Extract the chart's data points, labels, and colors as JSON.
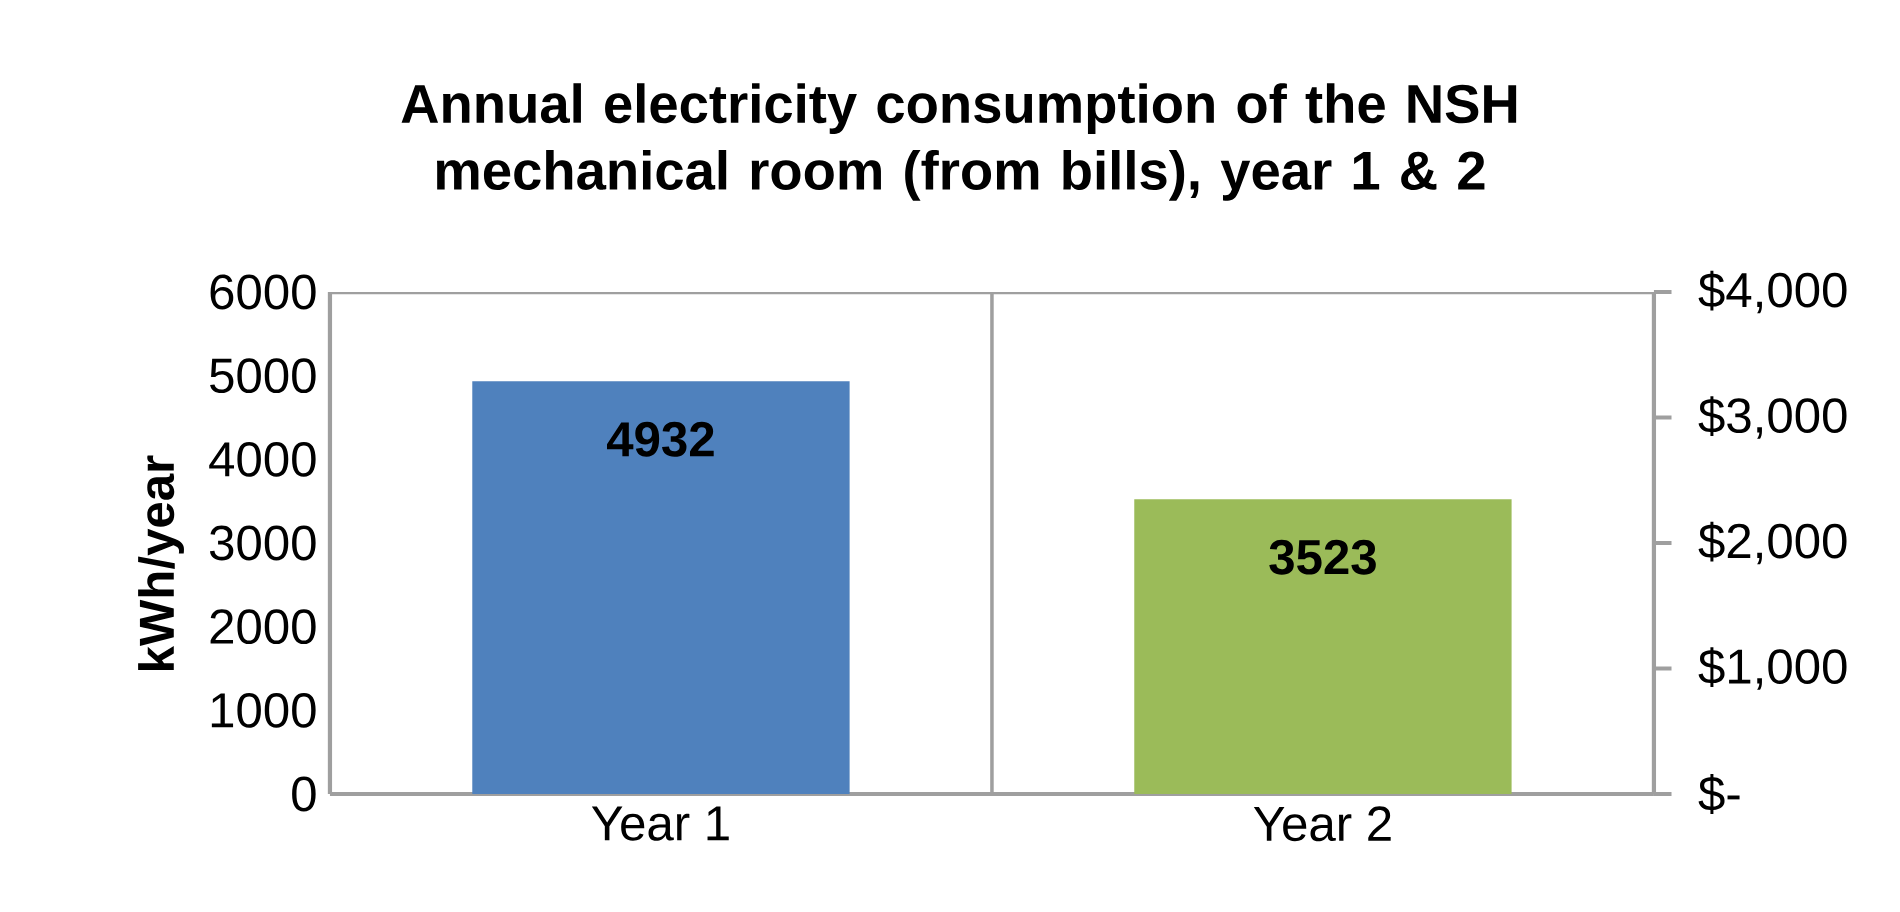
{
  "chart_data": {
    "type": "bar",
    "title": "Annual electricity consumption of the NSH mechanical room (from bills), year 1 & 2",
    "ylabel": "kWh/year",
    "categories": [
      "Year 1",
      "Year 2"
    ],
    "values": [
      4932,
      3523
    ],
    "colors": [
      "#4f81bd",
      "#9bbb59"
    ],
    "data_labels": true,
    "ylim": [
      0,
      6000
    ],
    "yticks": [
      0,
      1000,
      2000,
      3000,
      4000,
      5000,
      6000
    ],
    "y2lim": [
      0,
      4000
    ],
    "y2ticks": [
      {
        "value": 0,
        "label": "$-"
      },
      {
        "value": 1000,
        "label": "$1,000"
      },
      {
        "value": 2000,
        "label": "$2,000"
      },
      {
        "value": 3000,
        "label": "$3,000"
      },
      {
        "value": 4000,
        "label": "$4,000"
      }
    ],
    "grid": "x"
  }
}
